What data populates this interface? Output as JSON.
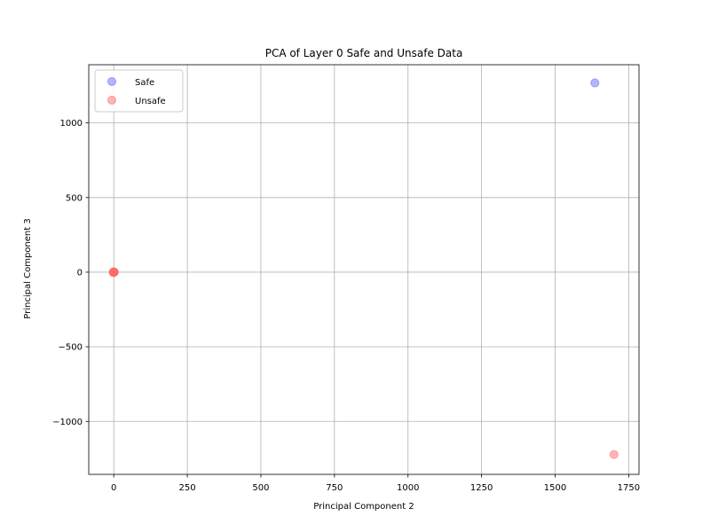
{
  "chart_data": {
    "type": "scatter",
    "title": "PCA of Layer 0 Safe and Unsafe Data",
    "xlabel": "Principal Component 2",
    "ylabel": "Principal Component 3",
    "xlim": [
      -85,
      1785
    ],
    "ylim": [
      -1355,
      1390
    ],
    "xticks": [
      0,
      250,
      500,
      750,
      1000,
      1250,
      1500,
      1750
    ],
    "xtick_labels": [
      "0",
      "250",
      "500",
      "750",
      "1000",
      "1250",
      "1500",
      "1750"
    ],
    "yticks": [
      -1000,
      -500,
      0,
      500,
      1000
    ],
    "ytick_labels": [
      "−1000",
      "−500",
      "0",
      "500",
      "1000"
    ],
    "grid": true,
    "legend_position": "upper-left",
    "series": [
      {
        "name": "Safe",
        "color": "#6b6bff",
        "points": [
          {
            "x": 0,
            "y": 0
          },
          {
            "x": 0,
            "y": 1
          },
          {
            "x": 1,
            "y": 0
          },
          {
            "x": 0,
            "y": -1
          },
          {
            "x": -1,
            "y": 0
          },
          {
            "x": 1635,
            "y": 1268
          }
        ]
      },
      {
        "name": "Unsafe",
        "color": "#ff6b6b",
        "points": [
          {
            "x": 0,
            "y": 0
          },
          {
            "x": 0,
            "y": 2
          },
          {
            "x": 1,
            "y": -1
          },
          {
            "x": -1,
            "y": 1
          },
          {
            "x": 2,
            "y": 0
          },
          {
            "x": -2,
            "y": -1
          },
          {
            "x": 0,
            "y": -2
          },
          {
            "x": 1,
            "y": 1
          },
          {
            "x": -1,
            "y": -2
          },
          {
            "x": 1700,
            "y": -1222
          }
        ]
      }
    ]
  }
}
